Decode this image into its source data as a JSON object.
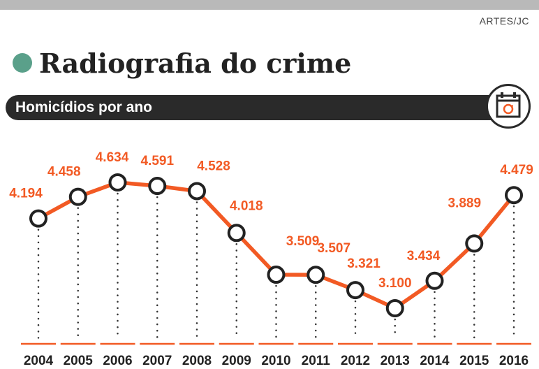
{
  "header": {
    "credit": "ARTES/JC",
    "title": "Radiografia do crime",
    "subtitle": "Homicídios por ano"
  },
  "icons": {
    "title_bullet": "circle-bullet-icon",
    "calendar": "calendar-icon"
  },
  "colors": {
    "line": "#f25a24",
    "label": "#f25a24",
    "title_dot": "#5aa08a",
    "subtitle_bar": "#2a2a2a"
  },
  "chart_data": {
    "type": "line",
    "x": [
      "2004",
      "2005",
      "2006",
      "2007",
      "2008",
      "2009",
      "2010",
      "2011",
      "2012",
      "2013",
      "2014",
      "2015",
      "2016"
    ],
    "values": [
      4194,
      4458,
      4634,
      4591,
      4528,
      4018,
      3509,
      3507,
      3321,
      3100,
      3434,
      3889,
      4479
    ],
    "value_labels": [
      "4.194",
      "4.458",
      "4.634",
      "4.591",
      "4.528",
      "4.018",
      "3.509",
      "3.507",
      "3.321",
      "3.100",
      "3.434",
      "3.889",
      "4.479"
    ],
    "title": "Radiografia do crime",
    "subtitle": "Homicídios por ano",
    "xlabel": "",
    "ylabel": "",
    "ylim": [
      3100,
      4634
    ],
    "grid": false,
    "legend": "none"
  }
}
